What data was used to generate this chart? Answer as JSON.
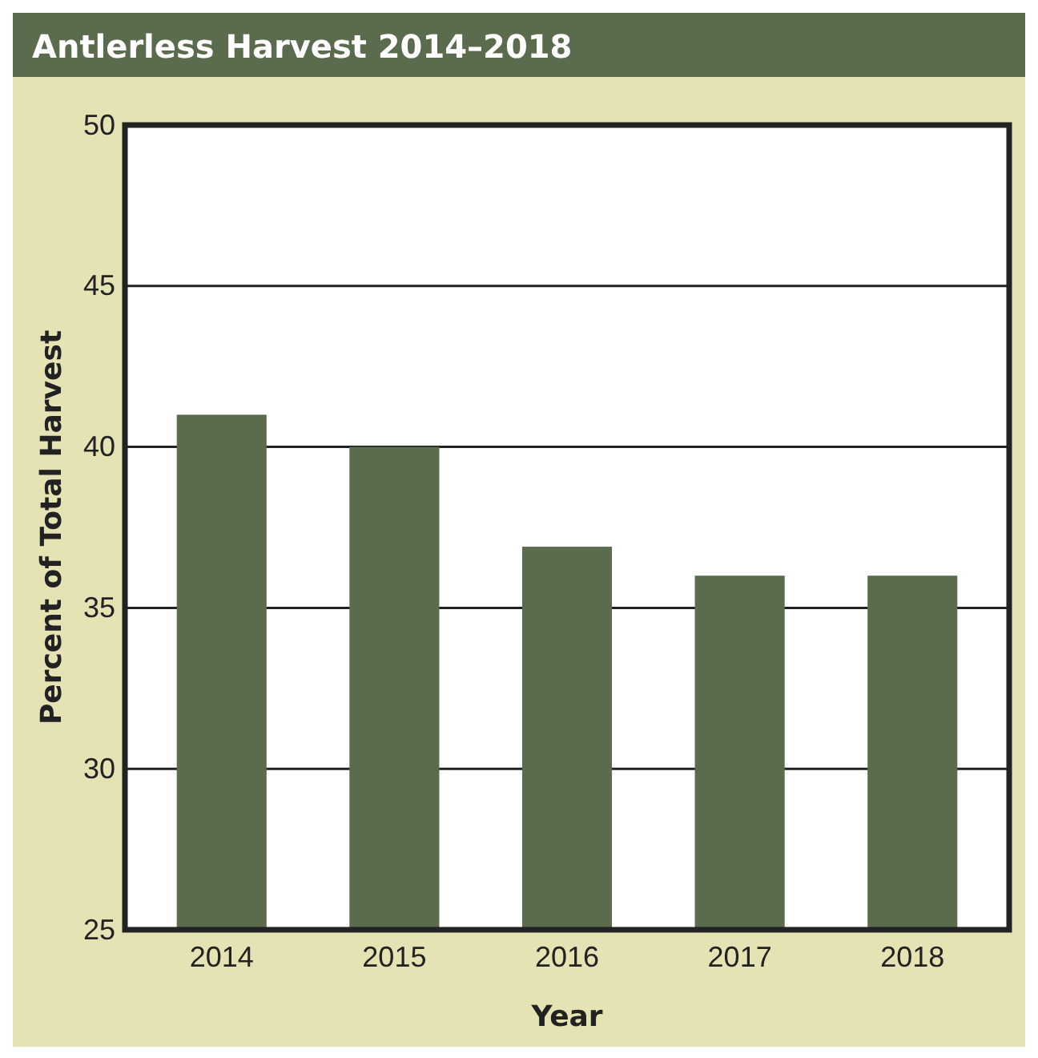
{
  "chart_data": {
    "type": "bar",
    "title": "Antlerless Harvest 2014–2018",
    "xlabel": "Year",
    "ylabel": "Percent of Total Harvest",
    "categories": [
      "2014",
      "2015",
      "2016",
      "2017",
      "2018"
    ],
    "values": [
      41,
      40,
      36.9,
      36,
      36
    ],
    "color": "#5a6b4e",
    "ylim": [
      25,
      50
    ],
    "yticks": [
      25,
      30,
      35,
      40,
      45,
      50
    ],
    "grid": "y"
  }
}
